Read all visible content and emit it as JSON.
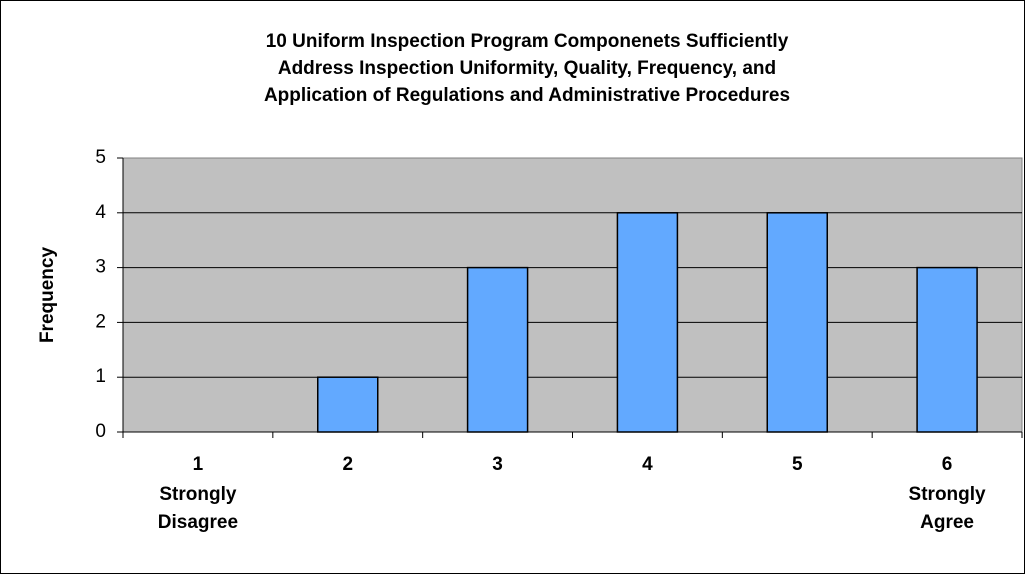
{
  "chart_data": {
    "type": "bar",
    "title": [
      "10 Uniform Inspection Program Componenets Sufficiently",
      "Address Inspection Uniformity, Quality, Frequency, and",
      "Application of Regulations and Administrative Procedures"
    ],
    "y_label": "Frequency",
    "categories": [
      "1",
      "2",
      "3",
      "4",
      "5",
      "6"
    ],
    "annotations": [
      [
        "Strongly",
        "Disagree"
      ],
      [
        "Strongly",
        "Agree"
      ]
    ],
    "values": [
      0,
      1,
      3,
      4,
      4,
      3
    ],
    "color": "#62a9ff",
    "ylim": [
      0,
      5
    ],
    "yticks": [
      0,
      1,
      2,
      3,
      4,
      5
    ],
    "grid": true
  }
}
